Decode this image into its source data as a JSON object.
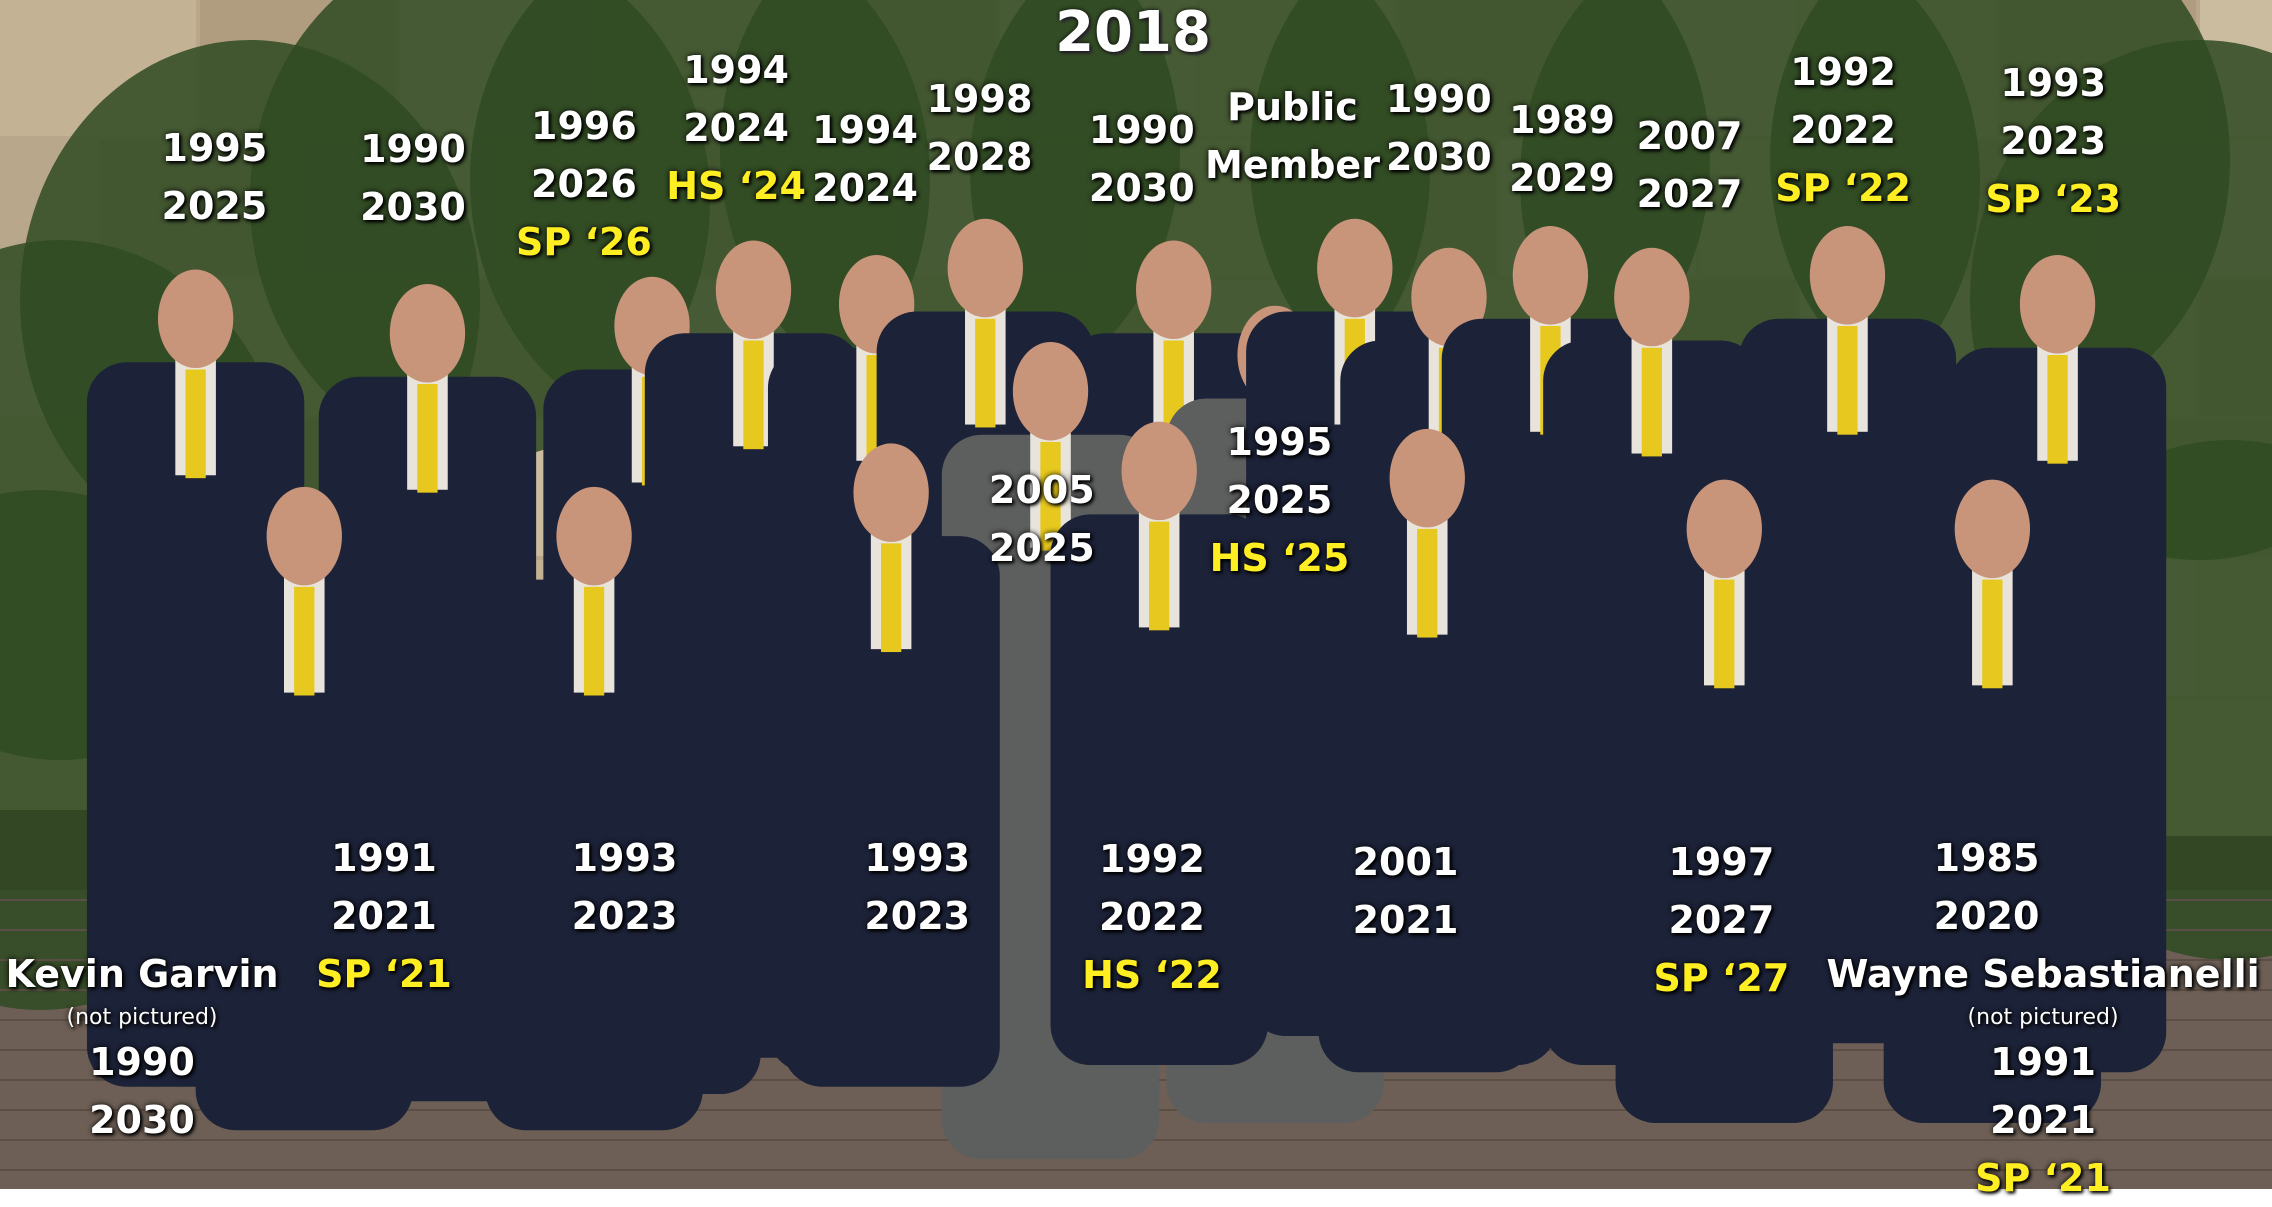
{
  "title": "2018",
  "labels": [
    {
      "lines": [
        "1995",
        "2025"
      ]
    },
    {
      "lines": [
        "1990",
        "2030"
      ]
    },
    {
      "lines": [
        "1996",
        "2026"
      ],
      "note": "SP ‘26"
    },
    {
      "lines": [
        "1994",
        "2024"
      ],
      "note": "HS ‘24"
    },
    {
      "lines": [
        "1994",
        "2024"
      ]
    },
    {
      "lines": [
        "1998",
        "2028"
      ]
    },
    {
      "lines": [
        "1990",
        "2030"
      ]
    },
    {
      "lines": [
        "Public",
        "Member"
      ]
    },
    {
      "lines": [
        "1990",
        "2030"
      ]
    },
    {
      "lines": [
        "1989",
        "2029"
      ]
    },
    {
      "lines": [
        "2007",
        "2027"
      ]
    },
    {
      "lines": [
        "1992",
        "2022"
      ],
      "note": "SP ‘22"
    },
    {
      "lines": [
        "1993",
        "2023"
      ],
      "note": "SP ‘23"
    },
    {
      "lines": [
        "2005",
        "2025"
      ]
    },
    {
      "lines": [
        "1995",
        "2025"
      ],
      "note": "HS ‘25"
    },
    {
      "lines": [
        "1991",
        "2021"
      ],
      "note": "SP ‘21"
    },
    {
      "lines": [
        "1993",
        "2023"
      ]
    },
    {
      "lines": [
        "1993",
        "2023"
      ]
    },
    {
      "lines": [
        "1992",
        "2022"
      ],
      "note": "HS ‘22"
    },
    {
      "lines": [
        "2001",
        "2021"
      ]
    },
    {
      "lines": [
        "1997",
        "2027"
      ],
      "note": "SP ‘27"
    },
    {
      "lines": [
        "1985",
        "2020"
      ]
    },
    {
      "name": "Kevin Garvin",
      "status": "(not pictured)",
      "lines": [
        "1990",
        "2030"
      ]
    },
    {
      "name": "Wayne Sebastianelli",
      "status": "(not pictured)",
      "lines": [
        "1991",
        "2021"
      ],
      "note": "SP ‘21"
    }
  ]
}
